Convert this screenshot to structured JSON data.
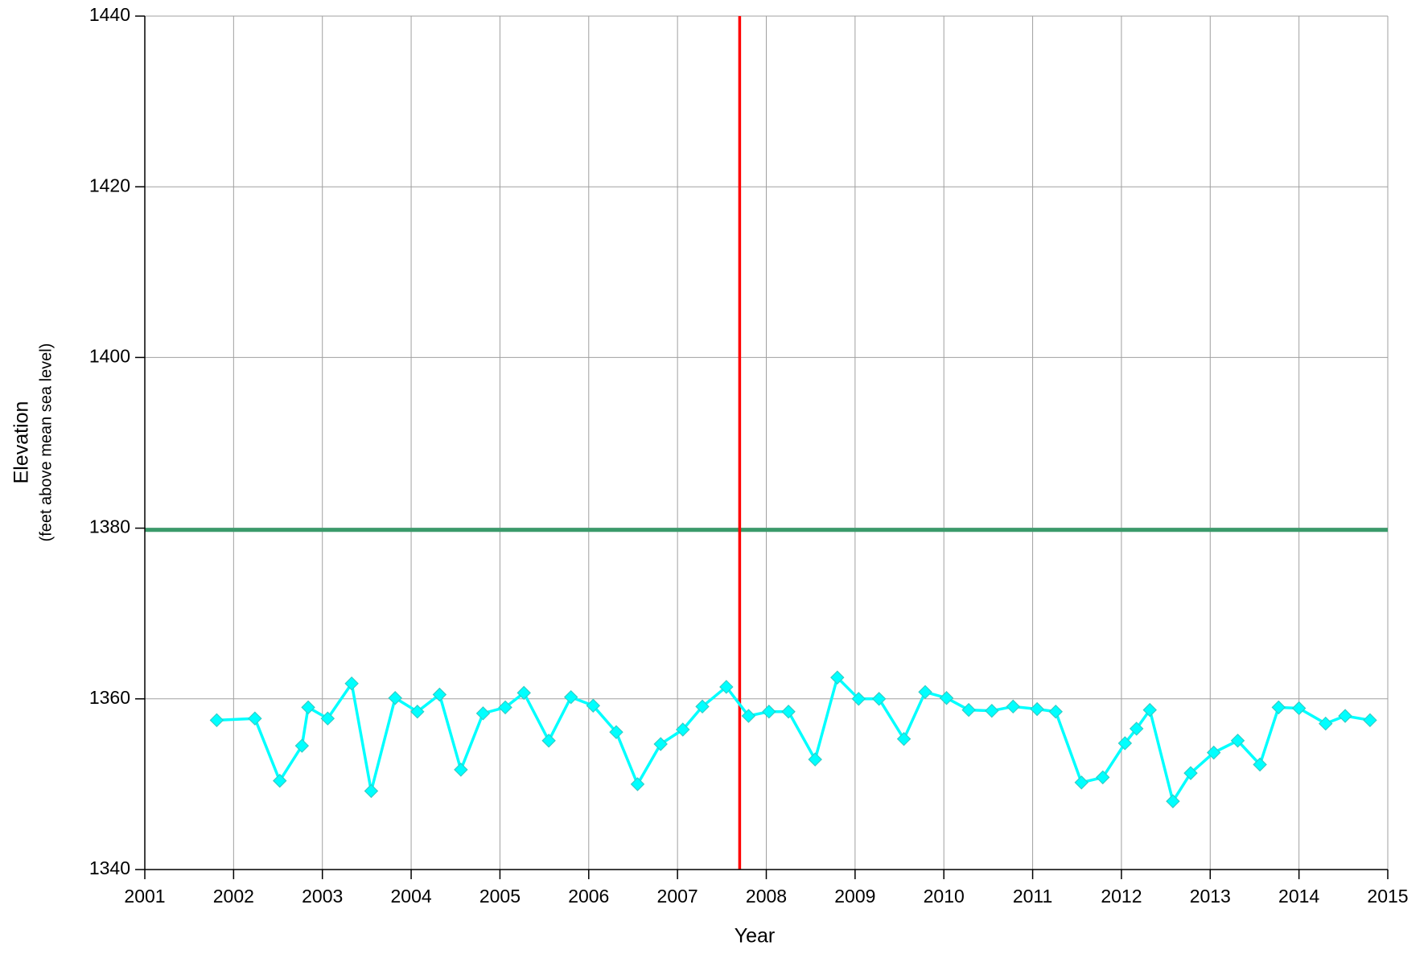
{
  "chart_data": {
    "type": "line",
    "xlabel": "Year",
    "ylabel": "Elevation",
    "ylabel_sub": "(feet above mean sea level)",
    "xlim": [
      2001,
      2015
    ],
    "xticks": [
      2001,
      2002,
      2003,
      2004,
      2005,
      2006,
      2007,
      2008,
      2009,
      2010,
      2011,
      2012,
      2013,
      2014,
      2015
    ],
    "ylim": [
      1340,
      1440
    ],
    "yticks": [
      1340,
      1360,
      1380,
      1400,
      1420,
      1440
    ],
    "grid": true,
    "vlines": [
      {
        "x": 2007.7,
        "color": "#ff0000"
      }
    ],
    "hlines": [
      {
        "y": 1379.8,
        "color": "#3a9a6a"
      }
    ],
    "series": [
      {
        "color": "#00ffff",
        "x": [
          2001.81,
          2002.24,
          2002.52,
          2002.77,
          2002.84,
          2003.06,
          2003.33,
          2003.55,
          2003.82,
          2004.07,
          2004.32,
          2004.56,
          2004.81,
          2005.06,
          2005.27,
          2005.55,
          2005.8,
          2006.05,
          2006.31,
          2006.55,
          2006.81,
          2007.06,
          2007.28,
          2007.55,
          2007.8,
          2008.03,
          2008.25,
          2008.55,
          2008.8,
          2009.04,
          2009.27,
          2009.55,
          2009.79,
          2010.03,
          2010.28,
          2010.54,
          2010.78,
          2011.05,
          2011.26,
          2011.55,
          2011.79,
          2012.04,
          2012.17,
          2012.32,
          2012.58,
          2012.78,
          2013.04,
          2013.31,
          2013.56,
          2013.77,
          2014.0,
          2014.3,
          2014.52,
          2014.8
        ],
        "values": [
          1357.5,
          1357.7,
          1350.4,
          1354.5,
          1359.0,
          1357.7,
          1361.8,
          1349.2,
          1360.1,
          1358.5,
          1360.5,
          1351.7,
          1358.3,
          1359.0,
          1360.7,
          1355.1,
          1360.2,
          1359.2,
          1356.1,
          1350.0,
          1354.7,
          1356.4,
          1359.1,
          1361.4,
          1358.0,
          1358.5,
          1358.5,
          1352.9,
          1362.5,
          1360.0,
          1360.0,
          1355.3,
          1360.8,
          1360.1,
          1358.7,
          1358.6,
          1359.1,
          1358.8,
          1358.5,
          1350.2,
          1350.8,
          1354.8,
          1356.5,
          1358.7,
          1348.0,
          1351.3,
          1353.7,
          1355.1,
          1352.3,
          1359.0,
          1358.9,
          1357.1,
          1358.0,
          1357.5
        ]
      }
    ]
  }
}
